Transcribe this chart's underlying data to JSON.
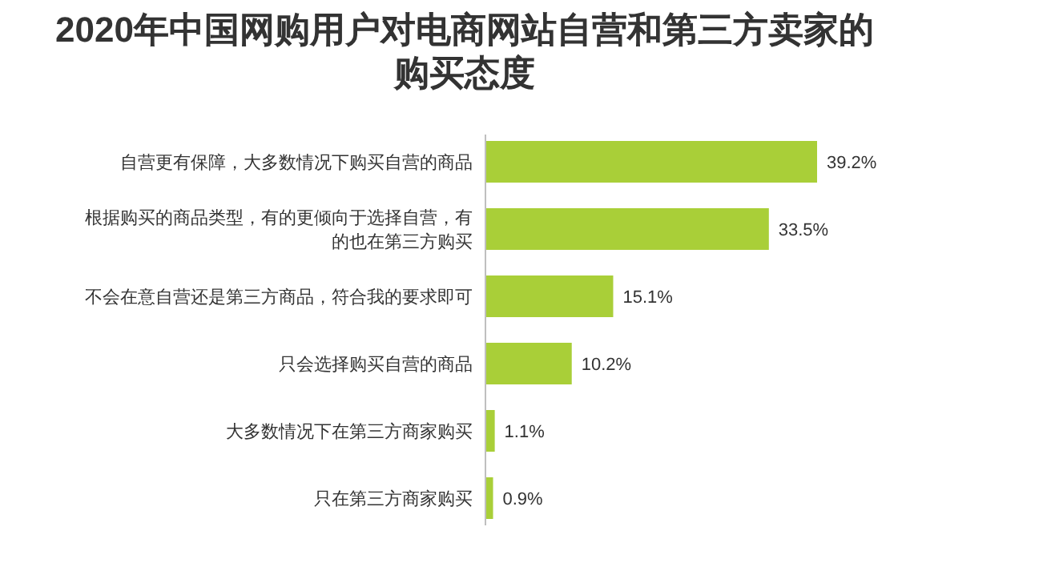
{
  "chart_data": {
    "type": "bar",
    "orientation": "horizontal",
    "title": "2020年中国网购用户对电商网站自营和第三方卖家的购买态度",
    "categories": [
      "自营更有保障，大多数情况下购买自营的商品",
      "根据购买的商品类型，有的更倾向于选择自营，有的也在第三方购买",
      "不会在意自营还是第三方商品，符合我的要求即可",
      "只会选择购买自营的商品",
      "大多数情况下在第三方商家购买",
      "只在第三方商家购买"
    ],
    "values": [
      39.2,
      33.5,
      15.1,
      10.2,
      1.1,
      0.9
    ],
    "value_labels": [
      "39.2%",
      "33.5%",
      "15.1%",
      "10.2%",
      "1.1%",
      "0.9%"
    ],
    "color": "#a9cf38"
  }
}
